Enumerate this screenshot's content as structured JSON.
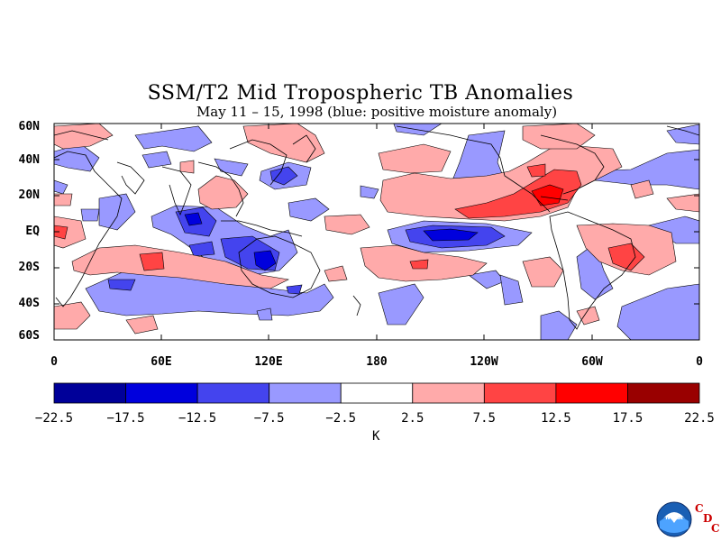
{
  "title": "SSM/T2 Mid Tropospheric TB Anomalies",
  "subtitle": "May 11 – 15, 1998 (blue: positive moisture anomaly)",
  "lat_labels": [
    "60N",
    "40N",
    "20N",
    "EQ",
    "20S",
    "40S",
    "60S"
  ],
  "lon_labels": [
    "0",
    "60E",
    "120E",
    "180",
    "120W",
    "60W",
    "0"
  ],
  "colorbar": {
    "boundaries": [
      "−22.5",
      "−17.5",
      "−12.5",
      "−7.5",
      "−2.5",
      "2.5",
      "7.5",
      "12.5",
      "17.5",
      "22.5"
    ],
    "colors": [
      "#000099",
      "#0000dd",
      "#4444ee",
      "#9999ff",
      "#ffffff",
      "#ffaaaa",
      "#ff4444",
      "#ff0000",
      "#990000"
    ],
    "unit": "K"
  },
  "logo": {
    "icon": "noaa-logo-icon",
    "letters": [
      "C",
      "D",
      "C"
    ]
  }
}
